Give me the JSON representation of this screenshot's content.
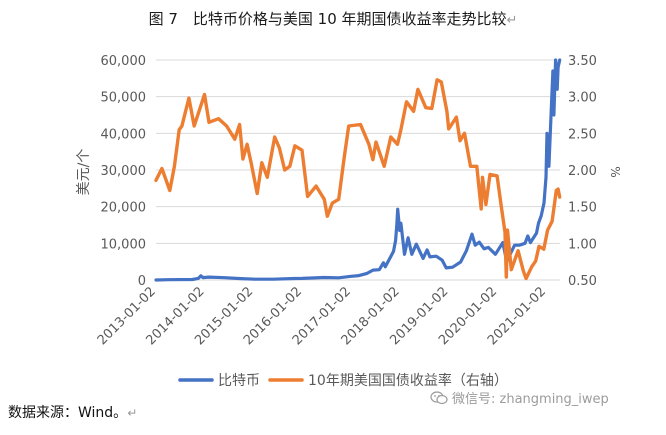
{
  "header": {
    "title": "图 7　比特币价格与美国 10 年期国债收益率走势比较",
    "return_mark": "↵"
  },
  "source": {
    "text": "数据来源：Wind。",
    "return_mark": "↵"
  },
  "watermark": {
    "text": "微信号: zhangming_iwep"
  },
  "colors": {
    "bitcoin": "#4472C4",
    "yield": "#ED7D31",
    "axis_text": "#595959",
    "gridline": "#D9D9D9"
  },
  "chart_data": {
    "type": "line",
    "title": "",
    "ylabel": "美元/个",
    "y2label": "%",
    "ylim": [
      0,
      60000
    ],
    "y2lim": [
      0.5,
      3.5
    ],
    "yticks": [
      "0",
      "10,000",
      "20,000",
      "30,000",
      "40,000",
      "50,000",
      "60,000"
    ],
    "y2ticks": [
      "0.50",
      "1.00",
      "1.50",
      "2.00",
      "2.50",
      "3.00",
      "3.50"
    ],
    "xlim": [
      "2013-01-02",
      "2021-04-15"
    ],
    "xticks": [
      "2013-01-02",
      "2014-01-02",
      "2015-01-02",
      "2016-01-02",
      "2017-01-02",
      "2018-01-02",
      "2019-01-02",
      "2020-01-02",
      "2021-01-02"
    ],
    "legend_position": "bottom",
    "grid": "horizontal",
    "series": [
      {
        "name": "比特币",
        "axis": "left",
        "color": "#4472C4",
        "x": [
          "2013-01-02",
          "2013-04-01",
          "2013-10-01",
          "2013-11-15",
          "2013-12-04",
          "2013-12-20",
          "2014-02-01",
          "2014-06-01",
          "2014-10-01",
          "2015-01-15",
          "2015-06-01",
          "2015-11-05",
          "2016-01-02",
          "2016-06-15",
          "2016-10-01",
          "2017-01-02",
          "2017-03-01",
          "2017-05-01",
          "2017-06-15",
          "2017-08-01",
          "2017-09-01",
          "2017-09-15",
          "2017-10-20",
          "2017-11-15",
          "2017-12-01",
          "2017-12-10",
          "2017-12-17",
          "2018-01-01",
          "2018-01-10",
          "2018-02-06",
          "2018-03-05",
          "2018-04-01",
          "2018-05-05",
          "2018-06-25",
          "2018-07-25",
          "2018-08-15",
          "2018-10-01",
          "2018-11-15",
          "2018-12-15",
          "2019-02-01",
          "2019-04-02",
          "2019-05-15",
          "2019-06-26",
          "2019-07-20",
          "2019-08-20",
          "2019-09-25",
          "2019-10-26",
          "2019-12-18",
          "2020-02-12",
          "2020-03-13",
          "2020-04-01",
          "2020-05-10",
          "2020-06-15",
          "2020-07-27",
          "2020-08-17",
          "2020-09-05",
          "2020-10-21",
          "2020-11-05",
          "2020-11-25",
          "2020-12-16",
          "2020-12-31",
          "2021-01-08",
          "2021-01-22",
          "2021-02-08",
          "2021-02-21",
          "2021-02-28",
          "2021-03-13",
          "2021-03-25",
          "2021-04-01",
          "2021-04-13"
        ],
        "values": [
          13,
          90,
          130,
          450,
          1150,
          650,
          800,
          630,
          380,
          210,
          230,
          400,
          430,
          690,
          610,
          1000,
          1200,
          1800,
          2700,
          2800,
          4700,
          3600,
          6000,
          7800,
          10800,
          15000,
          19300,
          13500,
          15500,
          7000,
          11500,
          7000,
          9800,
          5900,
          8200,
          6300,
          6500,
          5400,
          3300,
          3500,
          4900,
          8000,
          12500,
          9500,
          10300,
          8500,
          8900,
          7000,
          10200,
          5000,
          6600,
          9500,
          9500,
          10000,
          12000,
          10200,
          12800,
          15500,
          17500,
          21000,
          28000,
          40000,
          31000,
          46000,
          57000,
          45000,
          61000,
          52000,
          58000,
          63000
        ]
      },
      {
        "name": "10年期美国国债收益率（右轴）",
        "axis": "right",
        "color": "#ED7D31",
        "x": [
          "2013-01-02",
          "2013-02-15",
          "2013-04-15",
          "2013-05-20",
          "2013-06-25",
          "2013-07-15",
          "2013-09-05",
          "2013-10-15",
          "2013-12-31",
          "2014-02-03",
          "2014-04-15",
          "2014-06-15",
          "2014-08-15",
          "2014-09-20",
          "2014-10-15",
          "2014-11-15",
          "2014-12-15",
          "2015-01-30",
          "2015-03-05",
          "2015-04-15",
          "2015-06-10",
          "2015-07-15",
          "2015-08-24",
          "2015-10-01",
          "2015-11-08",
          "2015-12-31",
          "2016-02-11",
          "2016-04-15",
          "2016-06-15",
          "2016-07-08",
          "2016-08-15",
          "2016-10-01",
          "2016-11-10",
          "2016-12-15",
          "2017-03-13",
          "2017-05-15",
          "2017-06-14",
          "2017-07-07",
          "2017-09-07",
          "2017-10-26",
          "2017-12-15",
          "2018-01-10",
          "2018-02-21",
          "2018-04-15",
          "2018-05-17",
          "2018-07-15",
          "2018-08-29",
          "2018-10-08",
          "2018-11-08",
          "2018-12-20",
          "2019-01-03",
          "2019-03-01",
          "2019-03-28",
          "2019-05-01",
          "2019-06-15",
          "2019-08-01",
          "2019-09-03",
          "2019-09-13",
          "2019-10-08",
          "2019-11-08",
          "2019-12-31",
          "2020-01-31",
          "2020-02-28",
          "2020-03-09",
          "2020-03-18",
          "2020-04-15",
          "2020-06-05",
          "2020-07-15",
          "2020-08-04",
          "2020-09-15",
          "2020-10-15",
          "2020-11-09",
          "2020-12-15",
          "2021-01-12",
          "2021-02-15",
          "2021-03-18",
          "2021-04-01",
          "2021-04-13"
        ],
        "values": [
          1.86,
          2.02,
          1.72,
          2.05,
          2.55,
          2.6,
          2.98,
          2.6,
          3.03,
          2.65,
          2.7,
          2.6,
          2.42,
          2.62,
          2.15,
          2.35,
          2.1,
          1.68,
          2.1,
          1.9,
          2.45,
          2.3,
          2.0,
          2.05,
          2.33,
          2.27,
          1.64,
          1.78,
          1.6,
          1.37,
          1.55,
          1.6,
          2.15,
          2.6,
          2.62,
          2.35,
          2.14,
          2.38,
          2.05,
          2.45,
          2.35,
          2.55,
          2.93,
          2.8,
          3.1,
          2.85,
          2.84,
          3.23,
          3.2,
          2.8,
          2.56,
          2.72,
          2.4,
          2.5,
          2.05,
          2.05,
          1.47,
          1.9,
          1.53,
          1.94,
          1.92,
          1.51,
          1.15,
          0.54,
          1.18,
          0.64,
          0.9,
          0.62,
          0.52,
          0.68,
          0.76,
          0.96,
          0.92,
          1.18,
          1.3,
          1.72,
          1.74,
          1.63
        ]
      }
    ]
  }
}
